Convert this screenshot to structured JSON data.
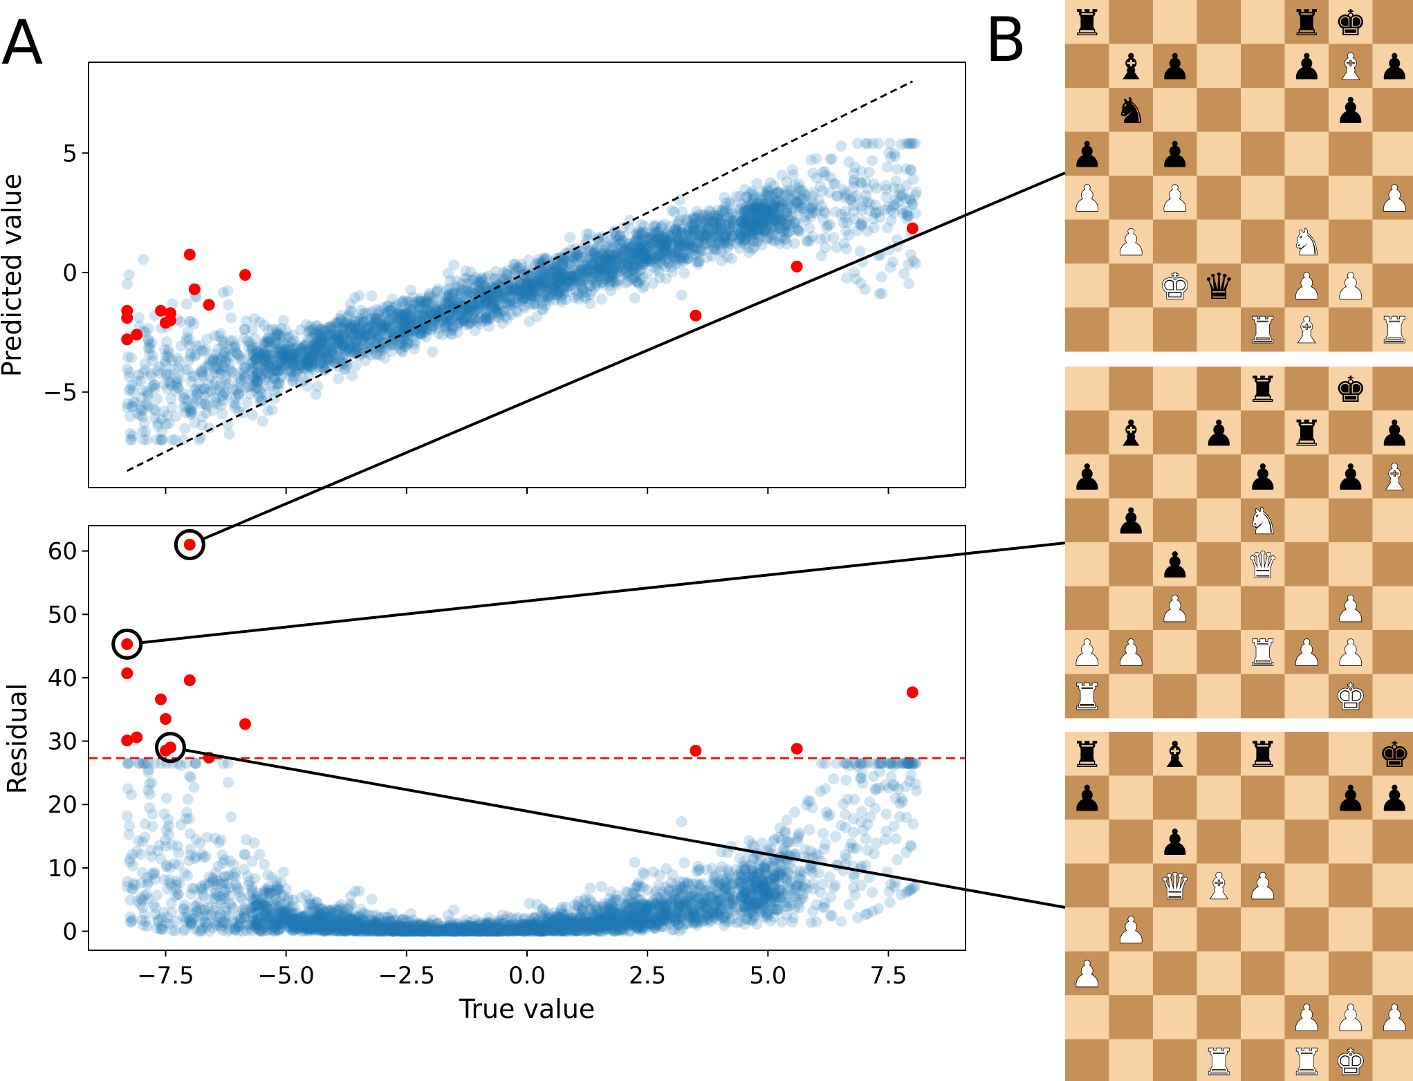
{
  "panel_labels": {
    "a": "A",
    "b": "B"
  },
  "colors": {
    "scatter": "#1f77b4",
    "outlier": "#ff0000",
    "identity_line": "#000000",
    "threshold_line": "#ff0000",
    "board_light": "#f6d2a5",
    "board_dark": "#c69158"
  },
  "chart_data": [
    {
      "name": "predicted-vs-true",
      "type": "scatter",
      "xlabel": "",
      "ylabel": "Predicted value",
      "xlim": [
        -9.1,
        9.1
      ],
      "ylim": [
        -9.0,
        8.8
      ],
      "yticks": [
        5,
        0,
        -5
      ],
      "ytick_labels": [
        "5",
        "0",
        "−5"
      ],
      "xticks": [
        -7.5,
        -5.0,
        -2.5,
        0.0,
        2.5,
        5.0,
        7.5
      ],
      "identity_line": {
        "from": [
          -8.3,
          -8.3
        ],
        "to": [
          8.0,
          8.0
        ],
        "style": "dashed"
      },
      "series": [
        {
          "name": "all positions (dense cloud, alpha 0.2)",
          "trend": "predicted ≈ 0.6·true − 0.6, spread grows at extremes",
          "n_rendered": 3200
        },
        {
          "name": "outliers",
          "points": [
            [
              -8.3,
              -1.6
            ],
            [
              -8.3,
              -1.9
            ],
            [
              -8.3,
              -2.8
            ],
            [
              -8.1,
              -2.6
            ],
            [
              -7.6,
              -1.6
            ],
            [
              -7.5,
              -2.1
            ],
            [
              -7.4,
              -1.7
            ],
            [
              -7.4,
              -2.0
            ],
            [
              -7.0,
              0.75
            ],
            [
              -6.9,
              -0.7
            ],
            [
              -6.6,
              -1.35
            ],
            [
              -5.85,
              -0.1
            ],
            [
              3.5,
              -1.8
            ],
            [
              5.6,
              0.25
            ],
            [
              8.0,
              1.85
            ]
          ]
        }
      ]
    },
    {
      "name": "residual-vs-true",
      "type": "scatter",
      "xlabel": "True value",
      "ylabel": "Residual",
      "xlim": [
        -9.1,
        9.1
      ],
      "ylim": [
        -3,
        64
      ],
      "yticks": [
        60,
        50,
        40,
        30,
        20,
        10,
        0
      ],
      "ytick_labels": [
        "60",
        "50",
        "40",
        "30",
        "20",
        "10",
        "0"
      ],
      "xticks": [
        -7.5,
        -5.0,
        -2.5,
        0.0,
        2.5,
        5.0,
        7.5
      ],
      "xtick_labels": [
        "−7.5",
        "−5.0",
        "−2.5",
        "0.0",
        "2.5",
        "5.0",
        "7.5"
      ],
      "threshold": 27.3,
      "series": [
        {
          "name": "all positions (squared residual, alpha 0.2)",
          "n_rendered": 3200
        },
        {
          "name": "outliers",
          "points": [
            [
              -7.0,
              61.0
            ],
            [
              -8.3,
              45.3
            ],
            [
              -8.3,
              40.7
            ],
            [
              -7.0,
              39.6
            ],
            [
              -7.6,
              36.6
            ],
            [
              -7.5,
              33.5
            ],
            [
              -5.85,
              32.7
            ],
            [
              -8.3,
              30.1
            ],
            [
              -8.1,
              30.6
            ],
            [
              -7.4,
              29.0
            ],
            [
              -7.5,
              28.5
            ],
            [
              -6.6,
              27.4
            ],
            [
              3.5,
              28.5
            ],
            [
              5.6,
              28.8
            ],
            [
              8.0,
              37.7
            ]
          ]
        }
      ],
      "highlighted": [
        [
          -7.0,
          61.0
        ],
        [
          -8.3,
          45.3
        ],
        [
          -7.4,
          29.0
        ]
      ]
    }
  ],
  "boards": [
    {
      "name": "board-1",
      "highlight_index": 0,
      "rows": [
        [
          "r",
          "",
          "",
          "",
          "",
          "r",
          "k",
          ""
        ],
        [
          "",
          "b",
          "p",
          "",
          "",
          "p",
          "B",
          "p"
        ],
        [
          "",
          "n",
          "",
          "",
          "",
          "",
          "p",
          ""
        ],
        [
          "p",
          "",
          "p",
          "",
          "",
          "",
          "",
          ""
        ],
        [
          "P",
          "",
          "P",
          "",
          "",
          "",
          "",
          "P"
        ],
        [
          "",
          "P",
          "",
          "",
          "",
          "N",
          "",
          ""
        ],
        [
          "",
          "",
          "K",
          "q",
          "",
          "P",
          "P",
          ""
        ],
        [
          "",
          "",
          "",
          "",
          "R",
          "B",
          "",
          "R"
        ]
      ]
    },
    {
      "name": "board-2",
      "highlight_index": 1,
      "rows": [
        [
          "",
          "",
          "",
          "",
          "r",
          "",
          "k",
          ""
        ],
        [
          "",
          "b",
          "",
          "p",
          "",
          "r",
          "",
          "p"
        ],
        [
          "p",
          "",
          "",
          "",
          "p",
          "",
          "p",
          "B"
        ],
        [
          "",
          "p",
          "",
          "",
          "N",
          "",
          "",
          ""
        ],
        [
          "",
          "",
          "p",
          "",
          "Q",
          "",
          "",
          ""
        ],
        [
          "",
          "",
          "P",
          "",
          "",
          "",
          "P",
          ""
        ],
        [
          "P",
          "P",
          "",
          "",
          "R",
          "P",
          "P",
          ""
        ],
        [
          "R",
          "",
          "",
          "",
          "",
          "",
          "K",
          ""
        ]
      ]
    },
    {
      "name": "board-3",
      "highlight_index": 2,
      "rows": [
        [
          "r",
          "",
          "b",
          "",
          "r",
          "",
          "",
          "k"
        ],
        [
          "p",
          "",
          "",
          "",
          "",
          "",
          "p",
          "p"
        ],
        [
          "",
          "",
          "p",
          "",
          "",
          "",
          "",
          ""
        ],
        [
          "",
          "",
          "Q",
          "B",
          "P",
          "",
          "",
          ""
        ],
        [
          "",
          "P",
          "",
          "",
          "",
          "",
          "",
          ""
        ],
        [
          "P",
          "",
          "",
          "",
          "",
          "",
          "",
          ""
        ],
        [
          "",
          "",
          "",
          "",
          "",
          "P",
          "P",
          "P"
        ],
        [
          "",
          "",
          "",
          "R",
          "",
          "R",
          "K",
          ""
        ]
      ]
    }
  ],
  "piece_glyphs": {
    "K": "♚",
    "Q": "♛",
    "R": "♜",
    "B": "♝",
    "N": "♞",
    "P": "♟"
  }
}
